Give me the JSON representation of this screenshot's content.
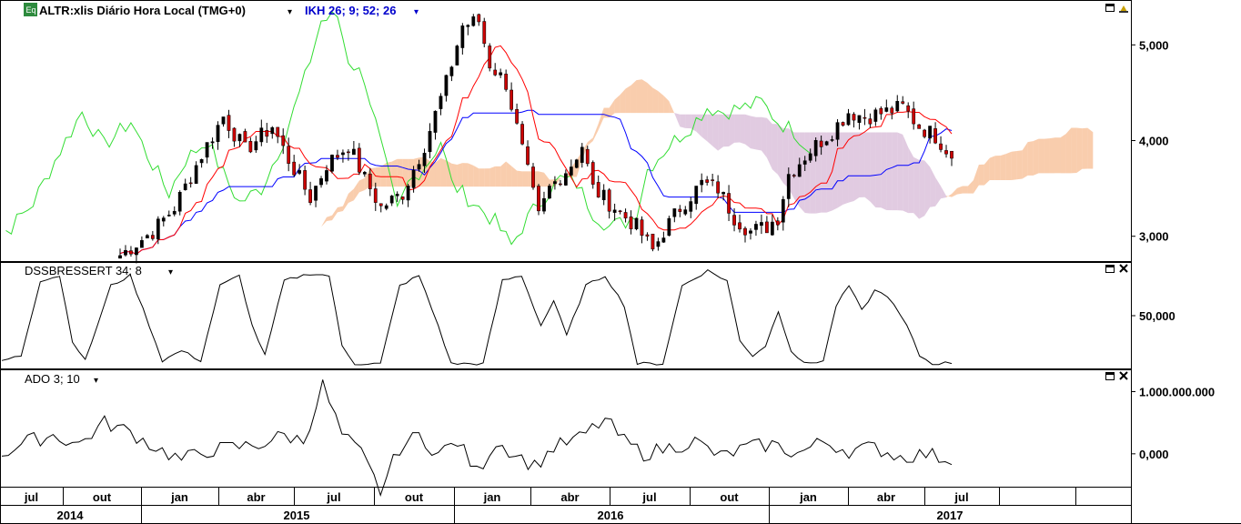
{
  "header": {
    "badge": "Eq",
    "title": "ALTR:xlis Diário Hora Local (TMG+0)",
    "indicator": "IKH 26; 9; 52; 26",
    "dropdown_glyph": "▾"
  },
  "panes": {
    "dss_label": "DSSBRESSERT 34; 8",
    "ado_label": "ADO 3; 10"
  },
  "icons": {
    "maximize": "window-maximize-icon",
    "close": "close-icon",
    "settings": "pin-icon"
  },
  "colors": {
    "background": "#ffffff",
    "candle_up": "#32cd32",
    "candle_down": "#cc0000",
    "tenkan": "#ff0000",
    "kijun": "#0000ff",
    "chikou": "#33dd33",
    "cloud_bull": "#f4a46a",
    "cloud_bear": "#c8a0c8",
    "indicator_line": "#000000",
    "header_indicator": "#0000cc",
    "grid": "#000000"
  },
  "chart_data": [
    {
      "type": "candlestick",
      "title": "ALTR:xlis Diário Hora Local (TMG+0)",
      "overlay": "IKH 26; 9; 52; 26",
      "x_axis": {
        "month_ticks": [
          "jul",
          "out",
          "jan",
          "abr",
          "jul",
          "out",
          "jan",
          "abr",
          "jul",
          "out",
          "jan",
          "abr",
          "jul"
        ],
        "year_ticks": [
          "2014",
          "2015",
          "2016",
          "2017"
        ]
      },
      "y_ticks": [
        "5,000",
        "4,000",
        "3,000"
      ],
      "ylim": [
        2.75,
        5.45
      ],
      "close_keypoints": [
        [
          0,
          2.8
        ],
        [
          6,
          3.05
        ],
        [
          10,
          3.3
        ],
        [
          15,
          3.85
        ],
        [
          19,
          4.25
        ],
        [
          23,
          3.9
        ],
        [
          28,
          4.15
        ],
        [
          31,
          3.8
        ],
        [
          35,
          3.4
        ],
        [
          38,
          3.75
        ],
        [
          42,
          3.95
        ],
        [
          45,
          3.6
        ],
        [
          48,
          3.3
        ],
        [
          52,
          3.45
        ],
        [
          56,
          3.95
        ],
        [
          60,
          4.6
        ],
        [
          63,
          5.2
        ],
        [
          66,
          5.25
        ],
        [
          68,
          4.8
        ],
        [
          71,
          4.6
        ],
        [
          74,
          3.9
        ],
        [
          77,
          3.2
        ],
        [
          79,
          3.5
        ],
        [
          83,
          3.75
        ],
        [
          85,
          3.95
        ],
        [
          87,
          3.5
        ],
        [
          91,
          3.3
        ],
        [
          95,
          3.1
        ],
        [
          98,
          2.85
        ],
        [
          100,
          3.05
        ],
        [
          103,
          3.3
        ],
        [
          107,
          3.55
        ],
        [
          110,
          3.5
        ],
        [
          113,
          3.2
        ],
        [
          116,
          3.05
        ],
        [
          119,
          3.1
        ],
        [
          121,
          3.2
        ],
        [
          123,
          3.65
        ],
        [
          127,
          3.9
        ],
        [
          131,
          4.1
        ],
        [
          134,
          4.3
        ],
        [
          137,
          4.25
        ],
        [
          141,
          4.3
        ],
        [
          144,
          4.35
        ],
        [
          147,
          4.15
        ],
        [
          150,
          4.05
        ],
        [
          153,
          3.85
        ]
      ]
    },
    {
      "type": "line",
      "title": "DSSBRESSERT 34; 8",
      "y_ticks": [
        "50,000"
      ],
      "ylim": [
        0,
        100
      ],
      "keypoints": [
        [
          0,
          5
        ],
        [
          3,
          10
        ],
        [
          6,
          85
        ],
        [
          9,
          90
        ],
        [
          11,
          25
        ],
        [
          13,
          5
        ],
        [
          17,
          80
        ],
        [
          20,
          90
        ],
        [
          23,
          40
        ],
        [
          25,
          5
        ],
        [
          28,
          15
        ],
        [
          31,
          5
        ],
        [
          34,
          80
        ],
        [
          37,
          90
        ],
        [
          39,
          40
        ],
        [
          41,
          10
        ],
        [
          44,
          85
        ],
        [
          48,
          92
        ],
        [
          51,
          90
        ],
        [
          53,
          20
        ],
        [
          55,
          2
        ],
        [
          59,
          2
        ],
        [
          62,
          80
        ],
        [
          65,
          90
        ],
        [
          68,
          40
        ],
        [
          70,
          2
        ],
        [
          75,
          2
        ],
        [
          78,
          85
        ],
        [
          81,
          90
        ],
        [
          84,
          40
        ],
        [
          86,
          65
        ],
        [
          88,
          30
        ],
        [
          91,
          80
        ],
        [
          94,
          90
        ],
        [
          97,
          60
        ],
        [
          99,
          2
        ],
        [
          103,
          2
        ],
        [
          106,
          80
        ],
        [
          110,
          95
        ],
        [
          113,
          85
        ],
        [
          115,
          25
        ],
        [
          117,
          10
        ],
        [
          119,
          20
        ],
        [
          121,
          55
        ],
        [
          123,
          15
        ],
        [
          125,
          2
        ],
        [
          128,
          5
        ],
        [
          130,
          60
        ],
        [
          132,
          80
        ],
        [
          134,
          55
        ],
        [
          136,
          75
        ],
        [
          138,
          70
        ],
        [
          141,
          40
        ],
        [
          143,
          10
        ],
        [
          145,
          2
        ],
        [
          148,
          3
        ]
      ]
    },
    {
      "type": "line",
      "title": "ADO 3; 10",
      "y_ticks": [
        "1.000.000.000",
        "0,000"
      ],
      "ylim": [
        -500000000,
        1300000000
      ],
      "keypoints": [
        [
          0,
          0
        ],
        [
          4,
          200000000
        ],
        [
          8,
          300000000
        ],
        [
          12,
          150000000
        ],
        [
          16,
          500000000
        ],
        [
          20,
          350000000
        ],
        [
          24,
          100000000
        ],
        [
          28,
          -100000000
        ],
        [
          32,
          50000000
        ],
        [
          36,
          100000000
        ],
        [
          40,
          150000000
        ],
        [
          44,
          300000000
        ],
        [
          47,
          200000000
        ],
        [
          50,
          1100000000
        ],
        [
          53,
          300000000
        ],
        [
          56,
          0
        ],
        [
          59,
          -600000000
        ],
        [
          62,
          100000000
        ],
        [
          65,
          300000000
        ],
        [
          68,
          0
        ],
        [
          71,
          200000000
        ],
        [
          74,
          -300000000
        ],
        [
          77,
          200000000
        ],
        [
          80,
          0
        ],
        [
          83,
          -200000000
        ],
        [
          86,
          100000000
        ],
        [
          90,
          250000000
        ],
        [
          94,
          550000000
        ],
        [
          97,
          200000000
        ],
        [
          100,
          0
        ],
        [
          104,
          100000000
        ],
        [
          108,
          200000000
        ],
        [
          112,
          -50000000
        ],
        [
          116,
          100000000
        ],
        [
          120,
          150000000
        ],
        [
          124,
          0
        ],
        [
          128,
          200000000
        ],
        [
          132,
          50000000
        ],
        [
          136,
          100000000
        ],
        [
          140,
          -50000000
        ],
        [
          144,
          0
        ],
        [
          148,
          -100000000
        ]
      ]
    }
  ]
}
